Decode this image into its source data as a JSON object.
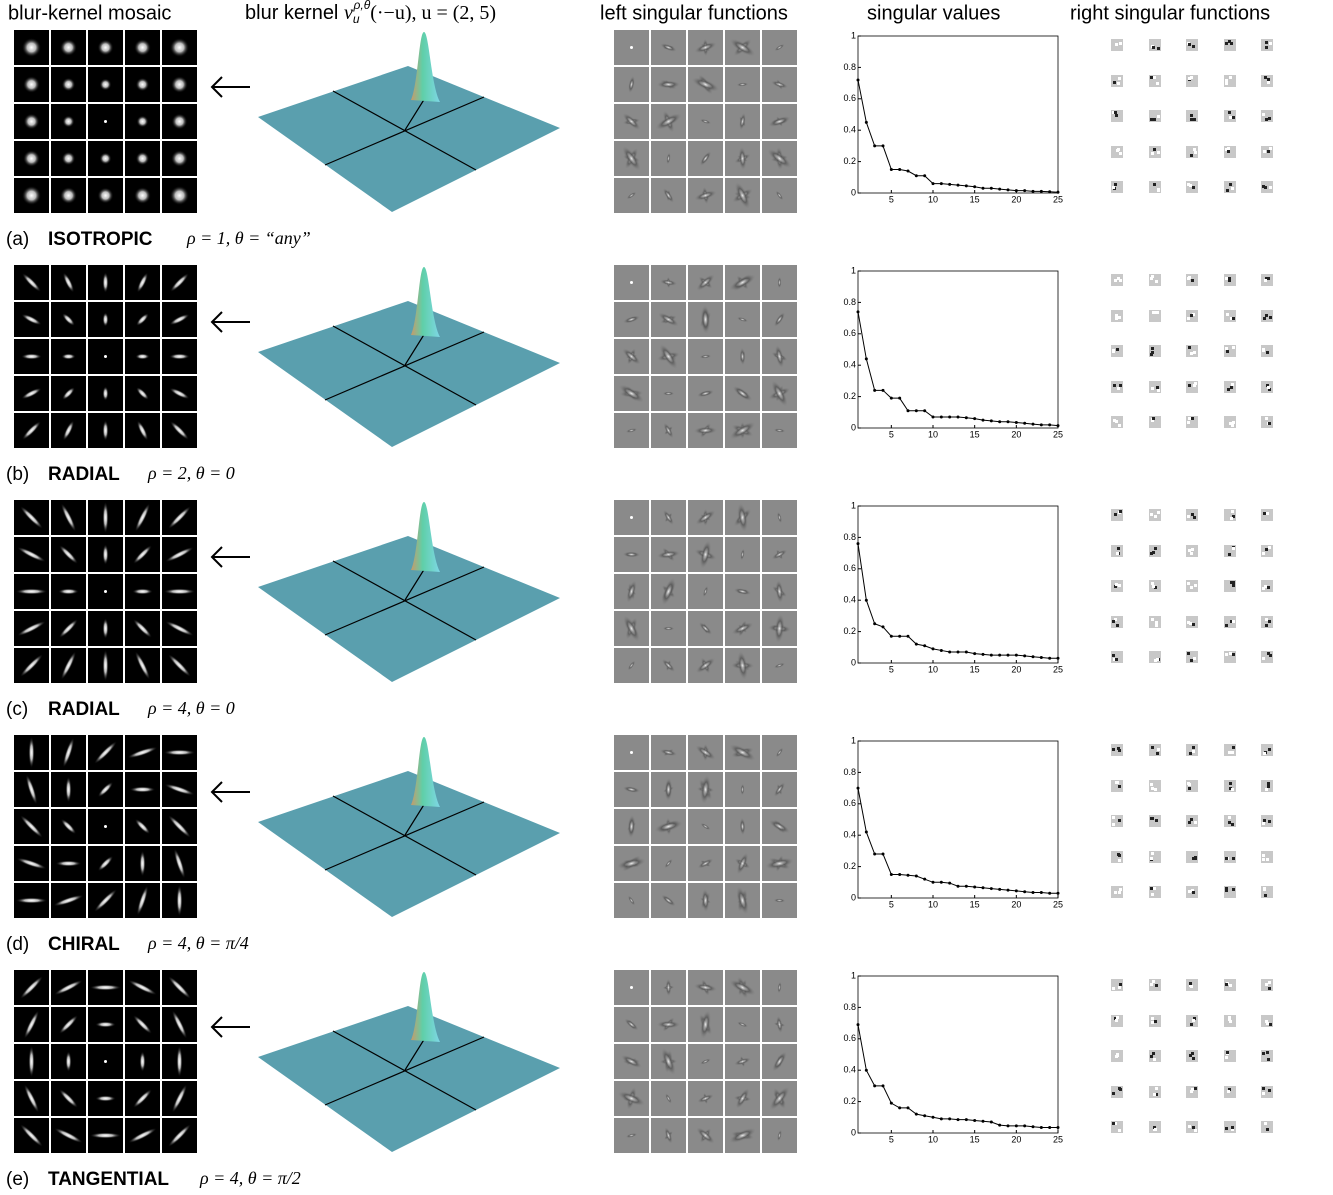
{
  "header": {
    "mosaic": "blur-kernel mosaic",
    "kernel": {
      "prefix": "blur kernel ",
      "symbol": "v",
      "sub": "u",
      "sup": "ρ,θ",
      "suffix": "(·−u), u = (2, 5)"
    },
    "left": "left singular functions",
    "values": "singular values",
    "right": "right singular functions"
  },
  "panels": [
    {
      "label": "(a)",
      "name": "ISOTROPIC",
      "params": "ρ = 1,  θ = “any”"
    },
    {
      "label": "(b)",
      "name": "RADIAL",
      "params": "ρ = 2,  θ = 0"
    },
    {
      "label": "(c)",
      "name": "RADIAL",
      "params": "ρ = 4,  θ = 0"
    },
    {
      "label": "(d)",
      "name": "CHIRAL",
      "params": "ρ = 4,  θ = π/4"
    },
    {
      "label": "(e)",
      "name": "TANGENTIAL",
      "params": "ρ = 4,   θ = π/2"
    }
  ],
  "chart_data": [
    {
      "type": "line",
      "color": "#000000",
      "x": [
        1,
        2,
        3,
        4,
        5,
        6,
        7,
        8,
        9,
        10,
        11,
        12,
        13,
        14,
        15,
        16,
        17,
        18,
        19,
        20,
        21,
        22,
        23,
        24,
        25
      ],
      "values": [
        0.72,
        0.45,
        0.3,
        0.3,
        0.15,
        0.15,
        0.14,
        0.11,
        0.11,
        0.06,
        0.06,
        0.055,
        0.05,
        0.045,
        0.04,
        0.03,
        0.03,
        0.025,
        0.02,
        0.015,
        0.015,
        0.01,
        0.01,
        0.008,
        0.005
      ],
      "xlim": [
        1,
        25
      ],
      "ylim": [
        0,
        1
      ],
      "xticks": [
        5,
        10,
        15,
        20,
        25
      ],
      "yticks": [
        0,
        0.2,
        0.4,
        0.6,
        0.8,
        1
      ]
    },
    {
      "type": "line",
      "color": "#000000",
      "x": [
        1,
        2,
        3,
        4,
        5,
        6,
        7,
        8,
        9,
        10,
        11,
        12,
        13,
        14,
        15,
        16,
        17,
        18,
        19,
        20,
        21,
        22,
        23,
        24,
        25
      ],
      "values": [
        0.74,
        0.44,
        0.24,
        0.24,
        0.19,
        0.19,
        0.11,
        0.11,
        0.11,
        0.07,
        0.07,
        0.07,
        0.07,
        0.065,
        0.06,
        0.05,
        0.045,
        0.04,
        0.04,
        0.035,
        0.03,
        0.025,
        0.02,
        0.02,
        0.015
      ],
      "xlim": [
        1,
        25
      ],
      "ylim": [
        0,
        1
      ],
      "xticks": [
        5,
        10,
        15,
        20,
        25
      ],
      "yticks": [
        0,
        0.2,
        0.4,
        0.6,
        0.8,
        1
      ]
    },
    {
      "type": "line",
      "color": "#000000",
      "x": [
        1,
        2,
        3,
        4,
        5,
        6,
        7,
        8,
        9,
        10,
        11,
        12,
        13,
        14,
        15,
        16,
        17,
        18,
        19,
        20,
        21,
        22,
        23,
        24,
        25
      ],
      "values": [
        0.76,
        0.4,
        0.25,
        0.23,
        0.17,
        0.17,
        0.17,
        0.12,
        0.11,
        0.09,
        0.08,
        0.07,
        0.07,
        0.07,
        0.06,
        0.055,
        0.05,
        0.05,
        0.05,
        0.05,
        0.045,
        0.04,
        0.035,
        0.03,
        0.03
      ],
      "xlim": [
        1,
        25
      ],
      "ylim": [
        0,
        1
      ],
      "xticks": [
        5,
        10,
        15,
        20,
        25
      ],
      "yticks": [
        0,
        0.2,
        0.4,
        0.6,
        0.8,
        1
      ]
    },
    {
      "type": "line",
      "color": "#000000",
      "x": [
        1,
        2,
        3,
        4,
        5,
        6,
        7,
        8,
        9,
        10,
        11,
        12,
        13,
        14,
        15,
        16,
        17,
        18,
        19,
        20,
        21,
        22,
        23,
        24,
        25
      ],
      "values": [
        0.7,
        0.42,
        0.28,
        0.28,
        0.15,
        0.15,
        0.145,
        0.14,
        0.12,
        0.1,
        0.1,
        0.095,
        0.075,
        0.075,
        0.07,
        0.065,
        0.06,
        0.055,
        0.05,
        0.045,
        0.04,
        0.035,
        0.035,
        0.03,
        0.03
      ],
      "xlim": [
        1,
        25
      ],
      "ylim": [
        0,
        1
      ],
      "xticks": [
        5,
        10,
        15,
        20,
        25
      ],
      "yticks": [
        0,
        0.2,
        0.4,
        0.6,
        0.8,
        1
      ]
    },
    {
      "type": "line",
      "color": "#000000",
      "x": [
        1,
        2,
        3,
        4,
        5,
        6,
        7,
        8,
        9,
        10,
        11,
        12,
        13,
        14,
        15,
        16,
        17,
        18,
        19,
        20,
        21,
        22,
        23,
        24,
        25
      ],
      "values": [
        0.69,
        0.4,
        0.3,
        0.3,
        0.19,
        0.16,
        0.16,
        0.12,
        0.11,
        0.1,
        0.09,
        0.09,
        0.085,
        0.085,
        0.08,
        0.075,
        0.07,
        0.05,
        0.045,
        0.045,
        0.045,
        0.04,
        0.035,
        0.035,
        0.035
      ],
      "xlim": [
        1,
        25
      ],
      "ylim": [
        0,
        1
      ],
      "xticks": [
        5,
        10,
        15,
        20,
        25
      ],
      "yticks": [
        0,
        0.2,
        0.4,
        0.6,
        0.8,
        1
      ]
    }
  ]
}
